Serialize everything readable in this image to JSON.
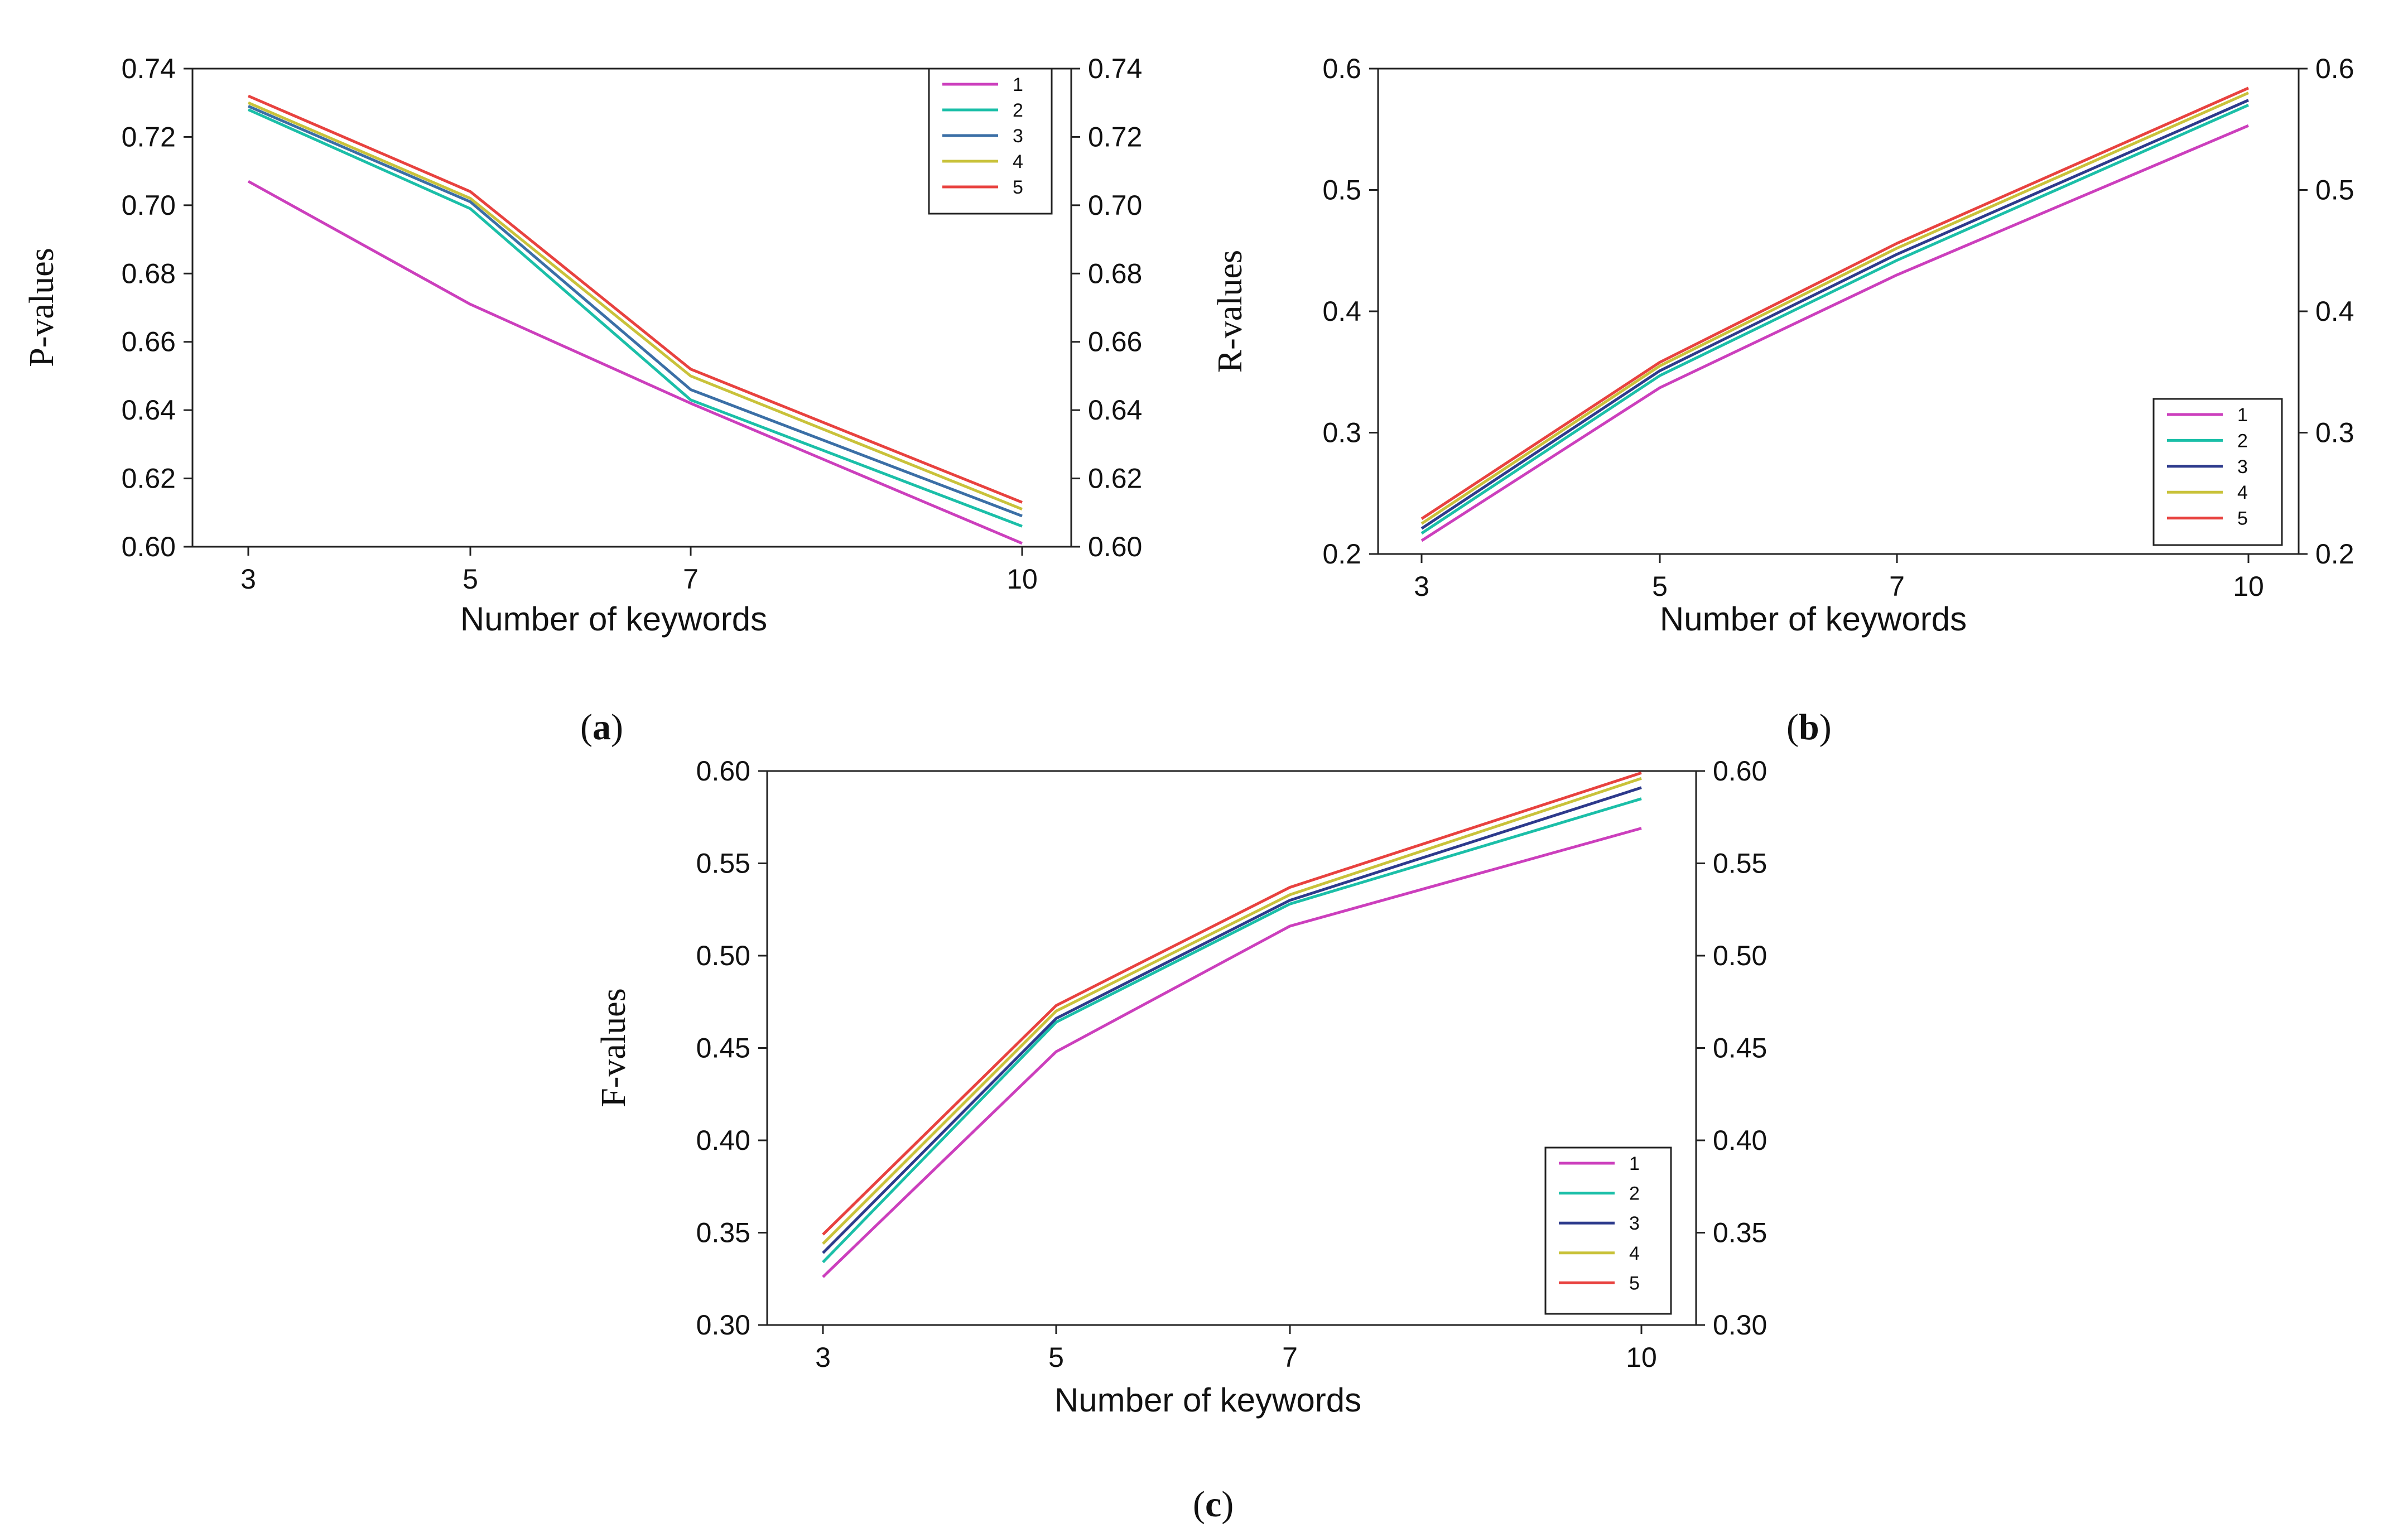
{
  "chart_data": [
    {
      "type": "line",
      "panel": "a",
      "caption": [
        "(",
        "a",
        ")"
      ],
      "xlabel": "Number of keywords",
      "ylabel": "P-values",
      "x": [
        3,
        5,
        7,
        10
      ],
      "ylim": [
        0.6,
        0.74
      ],
      "yticks": [
        "0.60",
        "0.62",
        "0.64",
        "0.66",
        "0.68",
        "0.70",
        "0.72",
        "0.74"
      ],
      "xticks": [
        "3",
        "5",
        "7",
        "10"
      ],
      "legend_position": "top-right",
      "series": [
        {
          "name": "1",
          "color": "#cc3fbd",
          "values": [
            0.707,
            0.671,
            0.642,
            0.601
          ]
        },
        {
          "name": "2",
          "color": "#1bbfa8",
          "values": [
            0.728,
            0.699,
            0.643,
            0.606
          ]
        },
        {
          "name": "3",
          "color": "#3b6fa6",
          "values": [
            0.729,
            0.701,
            0.646,
            0.609
          ]
        },
        {
          "name": "4",
          "color": "#c9c23a",
          "values": [
            0.73,
            0.702,
            0.65,
            0.611
          ]
        },
        {
          "name": "5",
          "color": "#e8423f",
          "values": [
            0.732,
            0.704,
            0.652,
            0.613
          ]
        }
      ]
    },
    {
      "type": "line",
      "panel": "b",
      "caption": [
        "(",
        "b",
        ")"
      ],
      "xlabel": "Number of keywords",
      "ylabel": "R-values",
      "x": [
        3,
        5,
        7,
        10
      ],
      "ylim": [
        0.2,
        0.6
      ],
      "yticks": [
        "0.2",
        "0.3",
        "0.4",
        "0.5",
        "0.6"
      ],
      "xticks": [
        "3",
        "5",
        "7",
        "10"
      ],
      "legend_position": "bottom-right",
      "series": [
        {
          "name": "1",
          "color": "#cc3fbd",
          "values": [
            0.211,
            0.337,
            0.43,
            0.553
          ]
        },
        {
          "name": "2",
          "color": "#1bbfa8",
          "values": [
            0.217,
            0.347,
            0.442,
            0.57
          ]
        },
        {
          "name": "3",
          "color": "#2d3a8c",
          "values": [
            0.221,
            0.351,
            0.447,
            0.574
          ]
        },
        {
          "name": "4",
          "color": "#c9c23a",
          "values": [
            0.225,
            0.355,
            0.452,
            0.58
          ]
        },
        {
          "name": "5",
          "color": "#e8423f",
          "values": [
            0.229,
            0.358,
            0.456,
            0.584
          ]
        }
      ]
    },
    {
      "type": "line",
      "panel": "c",
      "caption": [
        "(",
        "c",
        ")"
      ],
      "xlabel": "Number of keywords",
      "ylabel": "F-values",
      "x": [
        3,
        5,
        7,
        10
      ],
      "ylim": [
        0.3,
        0.6
      ],
      "yticks": [
        "0.30",
        "0.35",
        "0.40",
        "0.45",
        "0.50",
        "0.55",
        "0.60"
      ],
      "xticks": [
        "3",
        "5",
        "7",
        "10"
      ],
      "legend_position": "bottom-right",
      "series": [
        {
          "name": "1",
          "color": "#cc3fbd",
          "values": [
            0.326,
            0.448,
            0.516,
            0.569
          ]
        },
        {
          "name": "2",
          "color": "#1bbfa8",
          "values": [
            0.334,
            0.464,
            0.528,
            0.585
          ]
        },
        {
          "name": "3",
          "color": "#2d3a8c",
          "values": [
            0.339,
            0.466,
            0.53,
            0.591
          ]
        },
        {
          "name": "4",
          "color": "#c9c23a",
          "values": [
            0.344,
            0.47,
            0.533,
            0.596
          ]
        },
        {
          "name": "5",
          "color": "#e8423f",
          "values": [
            0.349,
            0.473,
            0.537,
            0.599
          ]
        }
      ]
    }
  ]
}
